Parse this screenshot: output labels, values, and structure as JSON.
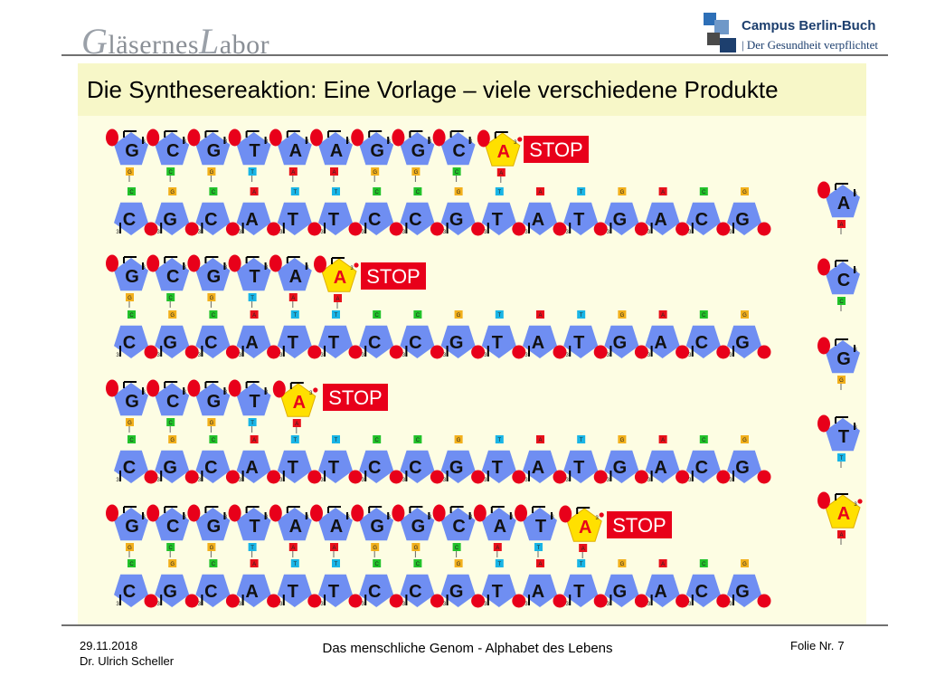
{
  "header": {
    "logo_left": {
      "cap1": "G",
      "rest1": "läsernes",
      "cap2": "L",
      "rest2": "abor"
    },
    "logo_right": {
      "line1": "Campus Berlin-Buch",
      "line2": "Der Gesundheit verpflichtet"
    }
  },
  "slide": {
    "title": "Die Synthesereaktion: Eine Vorlage – viele verschiedene Produkte"
  },
  "diagram": {
    "template_strand": [
      "C",
      "G",
      "C",
      "A",
      "T",
      "T",
      "C",
      "C",
      "G",
      "T",
      "A",
      "T",
      "G",
      "A",
      "C",
      "G"
    ],
    "products": [
      {
        "bases": [
          "G",
          "C",
          "G",
          "T",
          "A",
          "A",
          "G",
          "G",
          "C"
        ],
        "terminator": "A",
        "stop_label": "STOP"
      },
      {
        "bases": [
          "G",
          "C",
          "G",
          "T",
          "A"
        ],
        "terminator": "A",
        "stop_label": "STOP"
      },
      {
        "bases": [
          "G",
          "C",
          "G",
          "T"
        ],
        "terminator": "A",
        "stop_label": "STOP"
      },
      {
        "bases": [
          "G",
          "C",
          "G",
          "T",
          "A",
          "A",
          "G",
          "G",
          "C",
          "A",
          "T"
        ],
        "terminator": "A",
        "stop_label": "STOP"
      }
    ],
    "free_nucleotides": [
      "A",
      "C",
      "G",
      "T",
      "A"
    ],
    "sugar_label": "3",
    "colors": {
      "A": "#e8101a",
      "T": "#19b5e6",
      "G": "#f2b01c",
      "C": "#22c22a",
      "nucleotide": "#6f8ef2",
      "terminator": "#ffe000",
      "phosphate": "#e8001a",
      "stop_box": "#e8001a"
    }
  },
  "footer": {
    "date": "29.11.2018",
    "author": "Dr. Ulrich Scheller",
    "center": "Das menschliche Genom - Alphabet des Lebens",
    "slide_label": "Folie Nr.",
    "slide_number": "7"
  }
}
